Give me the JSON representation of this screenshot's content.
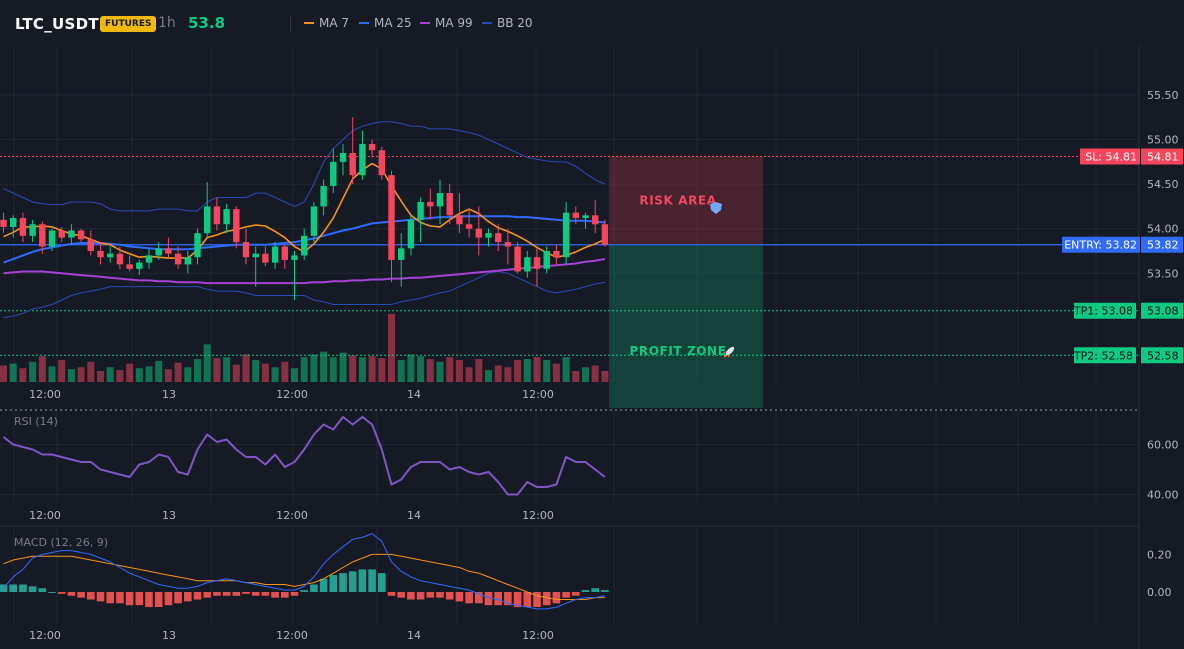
{
  "header": {
    "symbol": "LTC_USDT",
    "badge": "FUTURES",
    "timeframe": "1h",
    "price": "53.8",
    "legend": [
      {
        "label": "MA 7",
        "color": "#f7931a"
      },
      {
        "label": "MA 25",
        "color": "#2f6bff"
      },
      {
        "label": "MA 99",
        "color": "#a742d6"
      },
      {
        "label": "BB 20",
        "color": "#2a4bb6"
      }
    ]
  },
  "colors": {
    "up": "#0ecb81",
    "down": "#f6465d",
    "bg": "#161a25",
    "grid": "#232733",
    "axis_text": "#b2b5be"
  },
  "price_axis": {
    "ticks": [
      "55.50",
      "55.00",
      "54.50",
      "54.00",
      "53.50"
    ],
    "range": [
      52.28,
      56.05
    ]
  },
  "time_axis": {
    "ticks": [
      "12:00",
      "13",
      "12:00",
      "14",
      "12:00"
    ]
  },
  "trade": {
    "sl": {
      "label": "SL: 54.81",
      "value": "54.81"
    },
    "entry": {
      "label": "ENTRY: 53.82",
      "value": "53.82"
    },
    "tp1": {
      "label": "TP1: 53.08",
      "value": "53.08"
    },
    "tp2": {
      "label": "TP2: 52.58",
      "value": "52.58"
    },
    "risk_label": "RISK AREA",
    "profit_label": "PROFIT ZONE"
  },
  "rsi": {
    "title": "RSI (14)",
    "ticks": [
      "60.00",
      "40.00"
    ],
    "range": [
      37,
      73
    ]
  },
  "macd": {
    "title": "MACD (12, 26, 9)",
    "ticks": [
      "0.20",
      "0.00"
    ],
    "range": [
      -0.17,
      0.34
    ]
  },
  "chart_data": {
    "type": "candlestick",
    "candles": [
      [
        54.1,
        54.18,
        53.95,
        54.02
      ],
      [
        54.02,
        54.15,
        53.9,
        54.12
      ],
      [
        54.12,
        54.18,
        53.85,
        53.92
      ],
      [
        53.92,
        54.1,
        53.85,
        54.05
      ],
      [
        54.05,
        54.08,
        53.72,
        53.8
      ],
      [
        53.8,
        54.0,
        53.75,
        53.98
      ],
      [
        53.98,
        54.02,
        53.85,
        53.9
      ],
      [
        53.9,
        54.05,
        53.82,
        53.98
      ],
      [
        53.98,
        54.0,
        53.85,
        53.88
      ],
      [
        53.88,
        53.98,
        53.7,
        53.75
      ],
      [
        53.75,
        53.85,
        53.6,
        53.68
      ],
      [
        53.68,
        53.8,
        53.62,
        53.72
      ],
      [
        53.72,
        53.8,
        53.55,
        53.6
      ],
      [
        53.6,
        53.7,
        53.52,
        53.55
      ],
      [
        53.55,
        53.65,
        53.48,
        53.62
      ],
      [
        53.62,
        53.78,
        53.55,
        53.7
      ],
      [
        53.7,
        53.85,
        53.65,
        53.78
      ],
      [
        53.78,
        53.9,
        53.68,
        53.72
      ],
      [
        53.72,
        53.8,
        53.55,
        53.6
      ],
      [
        53.6,
        53.75,
        53.5,
        53.68
      ],
      [
        53.68,
        54.0,
        53.6,
        53.95
      ],
      [
        53.95,
        54.52,
        53.9,
        54.25
      ],
      [
        54.25,
        54.35,
        53.98,
        54.05
      ],
      [
        54.05,
        54.28,
        53.95,
        54.22
      ],
      [
        54.22,
        54.25,
        53.78,
        53.85
      ],
      [
        53.85,
        54.0,
        53.6,
        53.68
      ],
      [
        53.68,
        53.8,
        53.35,
        53.72
      ],
      [
        53.72,
        53.8,
        53.58,
        53.62
      ],
      [
        53.62,
        53.85,
        53.55,
        53.8
      ],
      [
        53.8,
        53.82,
        53.55,
        53.65
      ],
      [
        53.65,
        53.75,
        53.2,
        53.7
      ],
      [
        53.7,
        54.0,
        53.65,
        53.92
      ],
      [
        53.92,
        54.3,
        53.85,
        54.25
      ],
      [
        54.25,
        54.55,
        54.15,
        54.48
      ],
      [
        54.48,
        54.9,
        54.4,
        54.75
      ],
      [
        54.75,
        54.95,
        54.6,
        54.85
      ],
      [
        54.85,
        55.25,
        54.5,
        54.6
      ],
      [
        54.6,
        55.1,
        54.55,
        54.95
      ],
      [
        54.95,
        55.0,
        54.8,
        54.88
      ],
      [
        54.88,
        54.92,
        54.55,
        54.6
      ],
      [
        54.6,
        54.65,
        53.4,
        53.65
      ],
      [
        53.65,
        53.95,
        53.35,
        53.78
      ],
      [
        53.78,
        54.15,
        53.7,
        54.1
      ],
      [
        54.1,
        54.35,
        53.85,
        54.3
      ],
      [
        54.3,
        54.45,
        54.1,
        54.25
      ],
      [
        54.25,
        54.55,
        54.05,
        54.4
      ],
      [
        54.4,
        54.5,
        54.05,
        54.15
      ],
      [
        54.15,
        54.4,
        53.95,
        54.05
      ],
      [
        54.05,
        54.22,
        53.9,
        54.0
      ],
      [
        54.0,
        54.25,
        53.7,
        53.9
      ],
      [
        53.9,
        54.0,
        53.8,
        53.95
      ],
      [
        53.95,
        54.05,
        53.75,
        53.85
      ],
      [
        53.85,
        54.0,
        53.6,
        53.8
      ],
      [
        53.8,
        53.85,
        53.5,
        53.52
      ],
      [
        53.52,
        53.75,
        53.45,
        53.68
      ],
      [
        53.68,
        53.78,
        53.35,
        53.55
      ],
      [
        53.55,
        53.8,
        53.5,
        53.75
      ],
      [
        53.75,
        53.82,
        53.6,
        53.68
      ],
      [
        53.68,
        54.3,
        53.6,
        54.18
      ],
      [
        54.18,
        54.25,
        54.05,
        54.12
      ],
      [
        54.12,
        54.18,
        54.0,
        54.15
      ],
      [
        54.15,
        54.32,
        53.95,
        54.05
      ],
      [
        54.05,
        54.1,
        53.8,
        53.82
      ]
    ],
    "volume": [
      18,
      20,
      15,
      22,
      28,
      17,
      24,
      14,
      16,
      22,
      12,
      16,
      13,
      20,
      15,
      17,
      23,
      14,
      21,
      16,
      25,
      41,
      26,
      27,
      19,
      30,
      24,
      20,
      16,
      22,
      15,
      27,
      30,
      33,
      27,
      32,
      29,
      27,
      28,
      26,
      74,
      24,
      30,
      28,
      25,
      22,
      27,
      24,
      16,
      25,
      13,
      18,
      16,
      24,
      25,
      27,
      24,
      20,
      27,
      12,
      16,
      18,
      12
    ],
    "ma7": [
      53.91,
      53.96,
      54.02,
      54.02,
      54.03,
      54.02,
      53.98,
      53.94,
      53.92,
      53.88,
      53.84,
      53.82,
      53.76,
      53.72,
      53.68,
      53.69,
      53.68,
      53.67,
      53.67,
      53.67,
      53.76,
      53.9,
      53.93,
      53.97,
      53.99,
      54.02,
      54.04,
      54.03,
      53.97,
      53.9,
      53.8,
      53.74,
      53.83,
      53.96,
      54.12,
      54.34,
      54.56,
      54.66,
      54.73,
      54.67,
      54.48,
      54.31,
      54.15,
      54.07,
      54.03,
      54.02,
      54.1,
      54.17,
      54.22,
      54.17,
      54.08,
      54.01,
      53.97,
      53.92,
      53.86,
      53.79,
      53.73,
      53.68,
      53.7,
      53.74,
      53.79,
      53.83,
      53.88
    ],
    "ma25": [
      53.62,
      53.66,
      53.7,
      53.74,
      53.77,
      53.79,
      53.81,
      53.83,
      53.84,
      53.84,
      53.84,
      53.83,
      53.82,
      53.8,
      53.79,
      53.78,
      53.77,
      53.77,
      53.77,
      53.77,
      53.78,
      53.79,
      53.8,
      53.81,
      53.82,
      53.82,
      53.82,
      53.82,
      53.83,
      53.84,
      53.85,
      53.87,
      53.89,
      53.92,
      53.95,
      53.98,
      54.0,
      54.03,
      54.06,
      54.07,
      54.08,
      54.09,
      54.1,
      54.11,
      54.12,
      54.13,
      54.13,
      54.14,
      54.14,
      54.14,
      54.14,
      54.14,
      54.14,
      54.13,
      54.13,
      54.12,
      54.11,
      54.1,
      54.09,
      54.09,
      54.09,
      54.08,
      54.07
    ],
    "ma99": [
      53.5,
      53.51,
      53.52,
      53.52,
      53.52,
      53.51,
      53.5,
      53.49,
      53.48,
      53.47,
      53.46,
      53.45,
      53.44,
      53.43,
      53.42,
      53.42,
      53.41,
      53.41,
      53.4,
      53.4,
      53.4,
      53.39,
      53.39,
      53.39,
      53.39,
      53.39,
      53.39,
      53.39,
      53.39,
      53.39,
      53.39,
      53.39,
      53.4,
      53.4,
      53.41,
      53.41,
      53.42,
      53.42,
      53.43,
      53.43,
      53.44,
      53.44,
      53.45,
      53.45,
      53.46,
      53.47,
      53.48,
      53.49,
      53.5,
      53.51,
      53.52,
      53.53,
      53.54,
      53.55,
      53.56,
      53.57,
      53.58,
      53.59,
      53.6,
      53.61,
      53.63,
      53.64,
      53.66
    ],
    "bb_upper": [
      54.45,
      54.4,
      54.35,
      54.3,
      54.28,
      54.27,
      54.27,
      54.3,
      54.3,
      54.3,
      54.28,
      54.22,
      54.2,
      54.2,
      54.2,
      54.2,
      54.22,
      54.22,
      54.22,
      54.2,
      54.2,
      54.3,
      54.35,
      54.35,
      54.35,
      54.35,
      54.4,
      54.4,
      54.35,
      54.3,
      54.25,
      54.3,
      54.5,
      54.75,
      54.9,
      55.0,
      55.1,
      55.15,
      55.18,
      55.2,
      55.2,
      55.18,
      55.15,
      55.15,
      55.12,
      55.12,
      55.12,
      55.1,
      55.08,
      55.05,
      55.0,
      54.95,
      54.9,
      54.85,
      54.8,
      54.78,
      54.76,
      54.75,
      54.75,
      54.7,
      54.62,
      54.55,
      54.5
    ],
    "bb_lower": [
      53.0,
      53.02,
      53.05,
      53.1,
      53.12,
      53.15,
      53.2,
      53.25,
      53.28,
      53.3,
      53.32,
      53.35,
      53.35,
      53.35,
      53.35,
      53.35,
      53.35,
      53.35,
      53.35,
      53.35,
      53.35,
      53.32,
      53.3,
      53.3,
      53.3,
      53.28,
      53.25,
      53.25,
      53.25,
      53.25,
      53.25,
      53.25,
      53.2,
      53.18,
      53.15,
      53.15,
      53.15,
      53.15,
      53.15,
      53.15,
      53.15,
      53.18,
      53.2,
      53.22,
      53.25,
      53.28,
      53.3,
      53.35,
      53.4,
      53.45,
      53.5,
      53.52,
      53.5,
      53.45,
      53.4,
      53.35,
      53.3,
      53.28,
      53.3,
      53.32,
      53.35,
      53.38,
      53.4
    ],
    "rsi": [
      63,
      60,
      59,
      58,
      56,
      56,
      55,
      54,
      53,
      53,
      50,
      49,
      48,
      47,
      52,
      53,
      56,
      55,
      49,
      48,
      58,
      64,
      61,
      62,
      58,
      55,
      55,
      52,
      56,
      51,
      53,
      58,
      64,
      68,
      66,
      71,
      68,
      71,
      68,
      58,
      44,
      46,
      51,
      53,
      53,
      53,
      50,
      51,
      49,
      48,
      49,
      45,
      40,
      40,
      45,
      43,
      43,
      44,
      55,
      53,
      53,
      50,
      47
    ],
    "macd": [
      0.02,
      0.08,
      0.12,
      0.18,
      0.2,
      0.21,
      0.22,
      0.22,
      0.21,
      0.2,
      0.18,
      0.16,
      0.13,
      0.1,
      0.08,
      0.06,
      0.04,
      0.03,
      0.02,
      0.02,
      0.03,
      0.05,
      0.06,
      0.07,
      0.06,
      0.05,
      0.04,
      0.03,
      0.02,
      0.01,
      0.01,
      0.03,
      0.08,
      0.15,
      0.2,
      0.24,
      0.28,
      0.29,
      0.31,
      0.27,
      0.16,
      0.11,
      0.08,
      0.06,
      0.05,
      0.04,
      0.03,
      0.02,
      0.01,
      -0.01,
      -0.03,
      -0.04,
      -0.06,
      -0.07,
      -0.08,
      -0.09,
      -0.09,
      -0.08,
      -0.06,
      -0.04,
      -0.03,
      -0.03,
      -0.02
    ],
    "signal": [
      0.15,
      0.17,
      0.18,
      0.19,
      0.19,
      0.19,
      0.19,
      0.19,
      0.18,
      0.17,
      0.16,
      0.15,
      0.14,
      0.13,
      0.12,
      0.11,
      0.1,
      0.09,
      0.08,
      0.07,
      0.06,
      0.06,
      0.06,
      0.06,
      0.06,
      0.05,
      0.05,
      0.04,
      0.04,
      0.04,
      0.03,
      0.04,
      0.05,
      0.07,
      0.1,
      0.13,
      0.16,
      0.18,
      0.2,
      0.2,
      0.2,
      0.19,
      0.18,
      0.17,
      0.16,
      0.15,
      0.14,
      0.13,
      0.11,
      0.1,
      0.08,
      0.06,
      0.04,
      0.02,
      0.0,
      -0.02,
      -0.03,
      -0.04,
      -0.04,
      -0.04,
      -0.04,
      -0.03,
      -0.03
    ],
    "hist": [
      0.04,
      0.04,
      0.04,
      0.03,
      0.02,
      0.0,
      -0.01,
      -0.02,
      -0.03,
      -0.04,
      -0.05,
      -0.06,
      -0.06,
      -0.07,
      -0.07,
      -0.08,
      -0.08,
      -0.07,
      -0.06,
      -0.05,
      -0.04,
      -0.03,
      -0.02,
      -0.02,
      -0.02,
      -0.01,
      -0.02,
      -0.02,
      -0.03,
      -0.03,
      -0.02,
      0.01,
      0.04,
      0.07,
      0.09,
      0.1,
      0.11,
      0.12,
      0.12,
      0.1,
      -0.02,
      -0.03,
      -0.04,
      -0.04,
      -0.03,
      -0.03,
      -0.04,
      -0.05,
      -0.06,
      -0.06,
      -0.07,
      -0.07,
      -0.07,
      -0.08,
      -0.08,
      -0.08,
      -0.07,
      -0.06,
      -0.03,
      -0.02,
      0.01,
      0.02,
      0.01
    ]
  }
}
